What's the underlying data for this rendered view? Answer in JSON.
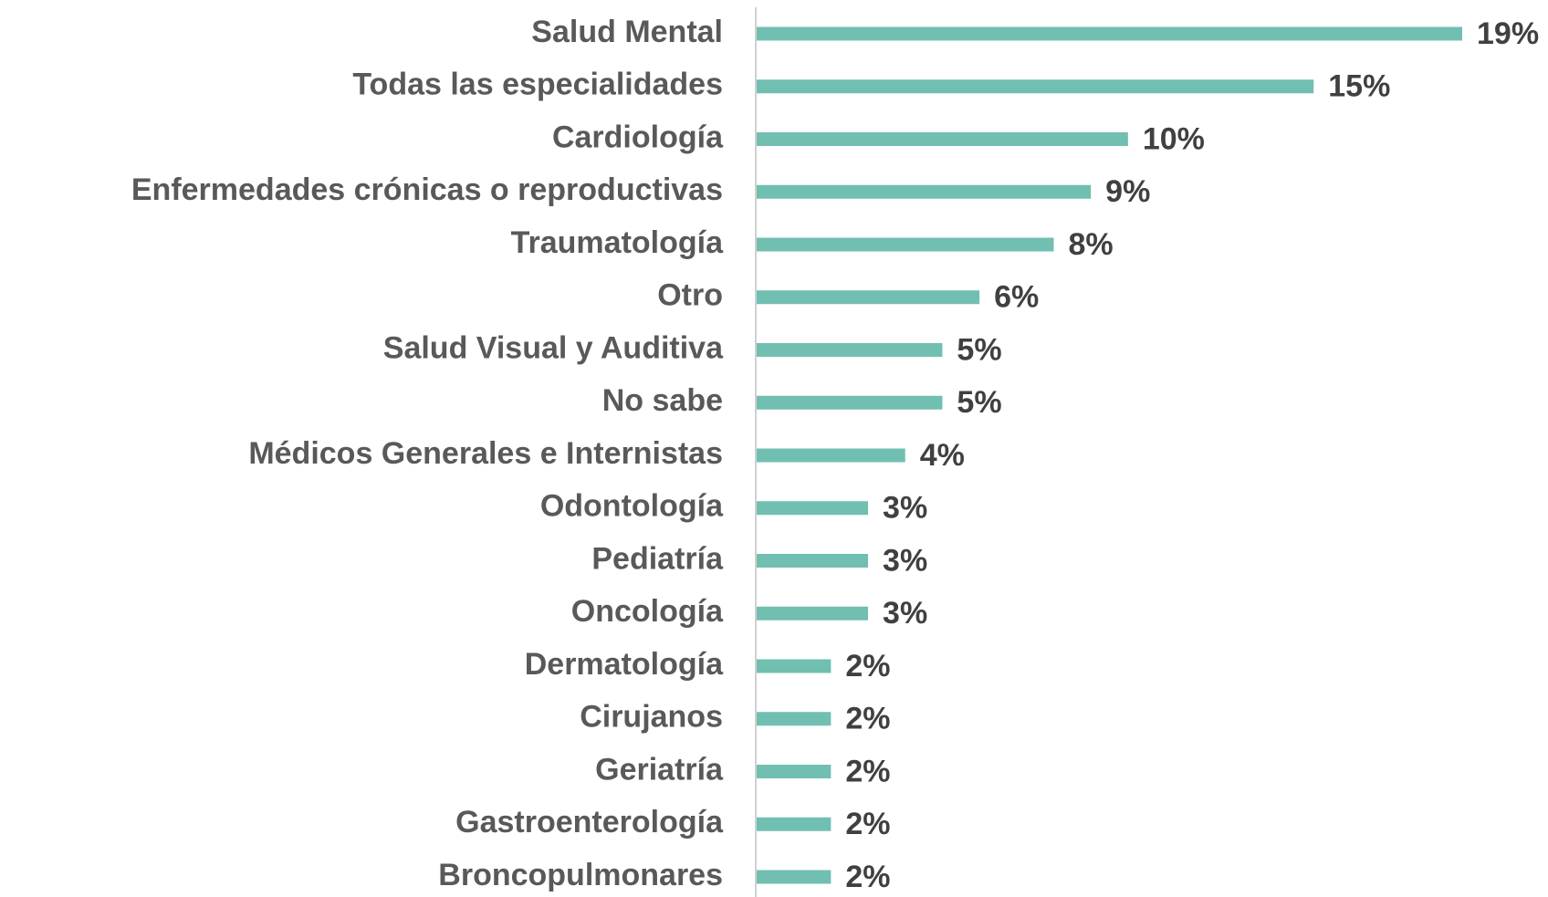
{
  "chart_data": {
    "type": "barh",
    "categories": [
      "Salud Mental",
      "Todas las especialidades",
      "Cardiología",
      "Enfermedades crónicas o reproductivas",
      "Traumatología",
      "Otro",
      "Salud Visual y Auditiva",
      "No sabe",
      "Médicos Generales e Internistas",
      "Odontología",
      "Pediatría",
      "Oncología",
      "Dermatología",
      "Cirujanos",
      "Geriatría",
      "Gastroenterología",
      "Broncopulmonares"
    ],
    "values": [
      19,
      15,
      10,
      9,
      8,
      6,
      5,
      5,
      4,
      3,
      3,
      3,
      2,
      2,
      2,
      2,
      2
    ],
    "value_labels": [
      "19%",
      "15%",
      "10%",
      "9%",
      "8%",
      "6%",
      "5%",
      "5%",
      "4%",
      "3%",
      "3%",
      "3%",
      "2%",
      "2%",
      "2%",
      "2%",
      "2%"
    ],
    "color": "#71bfb1"
  }
}
